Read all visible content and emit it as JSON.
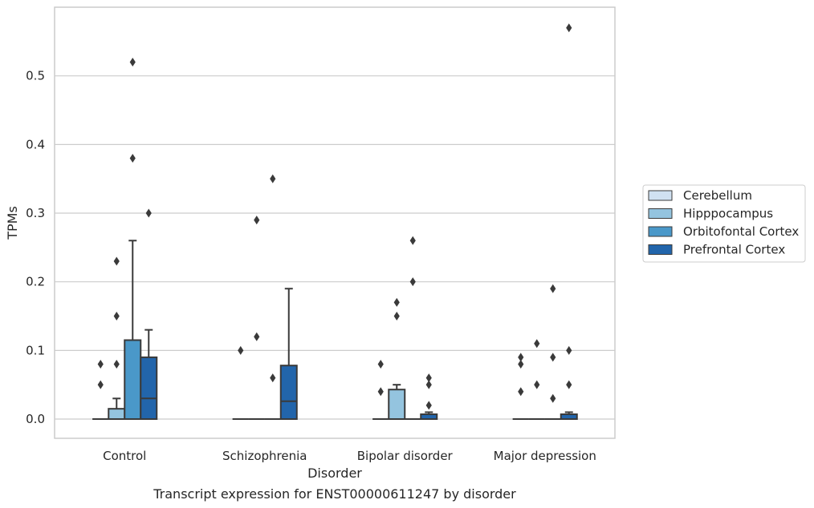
{
  "chart_data": {
    "type": "boxplot",
    "xlabel": "Disorder",
    "ylabel": "TPMs",
    "caption": "Transcript expression for ENST00000611247 by disorder",
    "ylim": [
      -0.028,
      0.6
    ],
    "yticks": [
      "0.0",
      "0.1",
      "0.2",
      "0.3",
      "0.4",
      "0.5"
    ],
    "grid": "horizontal",
    "legend_position": "right",
    "categories": [
      "Control",
      "Schizophrenia",
      "Bipolar disorder",
      "Major depression"
    ],
    "series": [
      {
        "name": "Cerebellum",
        "color": "#d0e1f2",
        "boxes": [
          {
            "q1": 0,
            "median": 0,
            "q3": 0,
            "whisker_low": 0,
            "whisker_high": 0,
            "outliers": [
              0.05,
              0.08
            ]
          },
          {
            "q1": 0,
            "median": 0,
            "q3": 0,
            "whisker_low": 0,
            "whisker_high": 0,
            "outliers": [
              0.1
            ]
          },
          {
            "q1": 0,
            "median": 0,
            "q3": 0,
            "whisker_low": 0,
            "whisker_high": 0,
            "outliers": [
              0.04,
              0.08
            ]
          },
          {
            "q1": 0,
            "median": 0,
            "q3": 0,
            "whisker_low": 0,
            "whisker_high": 0,
            "outliers": [
              0.04,
              0.08,
              0.09
            ]
          }
        ]
      },
      {
        "name": "Hipppocampus",
        "color": "#94c4df",
        "boxes": [
          {
            "q1": 0,
            "median": 0,
            "q3": 0.015,
            "whisker_low": 0,
            "whisker_high": 0.03,
            "outliers": [
              0.08,
              0.15,
              0.23
            ]
          },
          {
            "q1": 0,
            "median": 0,
            "q3": 0,
            "whisker_low": 0,
            "whisker_high": 0,
            "outliers": [
              0.12,
              0.29
            ]
          },
          {
            "q1": 0,
            "median": 0,
            "q3": 0.043,
            "whisker_low": 0,
            "whisker_high": 0.05,
            "outliers": [
              0.15,
              0.17
            ]
          },
          {
            "q1": 0,
            "median": 0,
            "q3": 0,
            "whisker_low": 0,
            "whisker_high": 0,
            "outliers": [
              0.05,
              0.11
            ]
          }
        ]
      },
      {
        "name": "Orbitofontal Cortex",
        "color": "#4a98c9",
        "boxes": [
          {
            "q1": 0,
            "median": 0,
            "q3": 0.115,
            "whisker_low": 0,
            "whisker_high": 0.26,
            "outliers": [
              0.38,
              0.52
            ]
          },
          {
            "q1": 0,
            "median": 0,
            "q3": 0,
            "whisker_low": 0,
            "whisker_high": 0,
            "outliers": [
              0.06,
              0.35
            ]
          },
          {
            "q1": 0,
            "median": 0,
            "q3": 0,
            "whisker_low": 0,
            "whisker_high": 0,
            "outliers": [
              0.2,
              0.26
            ]
          },
          {
            "q1": 0,
            "median": 0,
            "q3": 0,
            "whisker_low": 0,
            "whisker_high": 0,
            "outliers": [
              0.03,
              0.09,
              0.19
            ]
          }
        ]
      },
      {
        "name": "Prefrontal Cortex",
        "color": "#2265ab",
        "boxes": [
          {
            "q1": 0,
            "median": 0.03,
            "q3": 0.09,
            "whisker_low": 0,
            "whisker_high": 0.13,
            "outliers": [
              0.3
            ]
          },
          {
            "q1": 0,
            "median": 0.026,
            "q3": 0.078,
            "whisker_low": 0,
            "whisker_high": 0.19,
            "outliers": []
          },
          {
            "q1": 0,
            "median": 0,
            "q3": 0.007,
            "whisker_low": 0,
            "whisker_high": 0.01,
            "outliers": [
              0.02,
              0.05,
              0.06
            ]
          },
          {
            "q1": 0,
            "median": 0,
            "q3": 0.007,
            "whisker_low": 0,
            "whisker_high": 0.01,
            "outliers": [
              0.05,
              0.1,
              0.57
            ]
          }
        ]
      }
    ]
  }
}
